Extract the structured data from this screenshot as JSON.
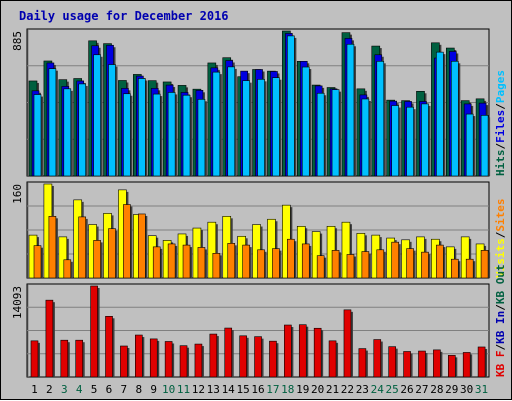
{
  "title": "Daily usage for December 2016",
  "colors": {
    "background": "#c0c0c0",
    "hits": "#006040",
    "files": "#0000e0",
    "pages": "#00c0ff",
    "visits": "#ffff00",
    "sites": "#ff8000",
    "kb_in": "#0000b0",
    "kb_out": "#006040",
    "kb_f": "#e00000",
    "weekday_label": "#000000",
    "weekend_label": "#006040"
  },
  "chart_data": [
    {
      "type": "bar",
      "name": "hits-files-pages",
      "max_label": "885",
      "categories": [
        "1",
        "2",
        "3",
        "4",
        "5",
        "6",
        "7",
        "8",
        "9",
        "10",
        "11",
        "12",
        "13",
        "14",
        "15",
        "16",
        "17",
        "18",
        "19",
        "20",
        "21",
        "22",
        "23",
        "24",
        "25",
        "26",
        "27",
        "28",
        "29",
        "30",
        "31"
      ],
      "weekend": [
        "3",
        "4",
        "10",
        "11",
        "17",
        "18",
        "24",
        "25",
        "31"
      ],
      "legend": [
        {
          "text": "Hits",
          "color": "#006040"
        },
        {
          "text": "/",
          "color": "#000000"
        },
        {
          "text": "Files",
          "color": "#0000e0"
        },
        {
          "text": "/",
          "color": "#000000"
        },
        {
          "text": "Pages",
          "color": "#00c0ff"
        }
      ],
      "ylim": [
        0,
        885
      ],
      "series": [
        {
          "name": "Hits",
          "values": [
            580,
            702,
            588,
            595,
            825,
            808,
            583,
            620,
            582,
            574,
            553,
            530,
            690,
            722,
            606,
            650,
            640,
            885,
            700,
            555,
            540,
            875,
            532,
            793,
            463,
            460,
            517,
            813,
            781,
            460,
            471
          ]
        },
        {
          "name": "Files",
          "values": [
            520,
            690,
            547,
            580,
            795,
            798,
            535,
            610,
            535,
            555,
            510,
            523,
            660,
            705,
            640,
            650,
            638,
            870,
            700,
            550,
            532,
            840,
            495,
            740,
            457,
            455,
            455,
            720,
            760,
            440,
            445
          ]
        },
        {
          "name": "Pages",
          "values": [
            497,
            655,
            532,
            562,
            740,
            680,
            502,
            595,
            500,
            510,
            493,
            468,
            634,
            666,
            582,
            590,
            600,
            855,
            665,
            505,
            527,
            804,
            470,
            700,
            430,
            420,
            440,
            756,
            700,
            378,
            370
          ]
        }
      ]
    },
    {
      "type": "bar",
      "name": "visits-sites",
      "max_label": "160",
      "legend": [
        {
          "text": "Visits",
          "color": "#ffff00"
        },
        {
          "text": "/",
          "color": "#000000"
        },
        {
          "text": "Sites",
          "color": "#ff8000"
        }
      ],
      "ylim": [
        0,
        160
      ],
      "series": [
        {
          "name": "Visits",
          "values": [
            73,
            160,
            70,
            133,
            91,
            110,
            150,
            108,
            72,
            64,
            75,
            85,
            95,
            105,
            71,
            91,
            100,
            124,
            88,
            79,
            88,
            95,
            76,
            73,
            68,
            65,
            70,
            66,
            53,
            70,
            58
          ]
        },
        {
          "name": "Sites",
          "values": [
            55,
            105,
            31,
            104,
            64,
            84,
            125,
            109,
            53,
            58,
            56,
            52,
            42,
            59,
            56,
            48,
            50,
            66,
            58,
            38,
            47,
            40,
            45,
            48,
            61,
            50,
            44,
            56,
            32,
            32,
            47
          ]
        }
      ]
    },
    {
      "type": "bar",
      "name": "kbf-kbin-kbout",
      "max_label": "14093",
      "legend": [
        {
          "text": "KB F",
          "color": "#e00000"
        },
        {
          "text": "/",
          "color": "#000000"
        },
        {
          "text": "KB In",
          "color": "#0000b0"
        },
        {
          "text": "/",
          "color": "#000000"
        },
        {
          "text": "KB Out",
          "color": "#006040"
        }
      ],
      "ylim": [
        0,
        14093
      ],
      "series": [
        {
          "name": "KB F",
          "values": [
            5600,
            11900,
            5700,
            5700,
            14093,
            9400,
            4800,
            6500,
            5900,
            5500,
            4850,
            5100,
            6650,
            7580,
            6380,
            6250,
            5550,
            8050,
            8100,
            7550,
            5600,
            10400,
            4400,
            5800,
            4700,
            3950,
            4020,
            4200,
            3350,
            3800,
            4650
          ]
        }
      ]
    }
  ]
}
